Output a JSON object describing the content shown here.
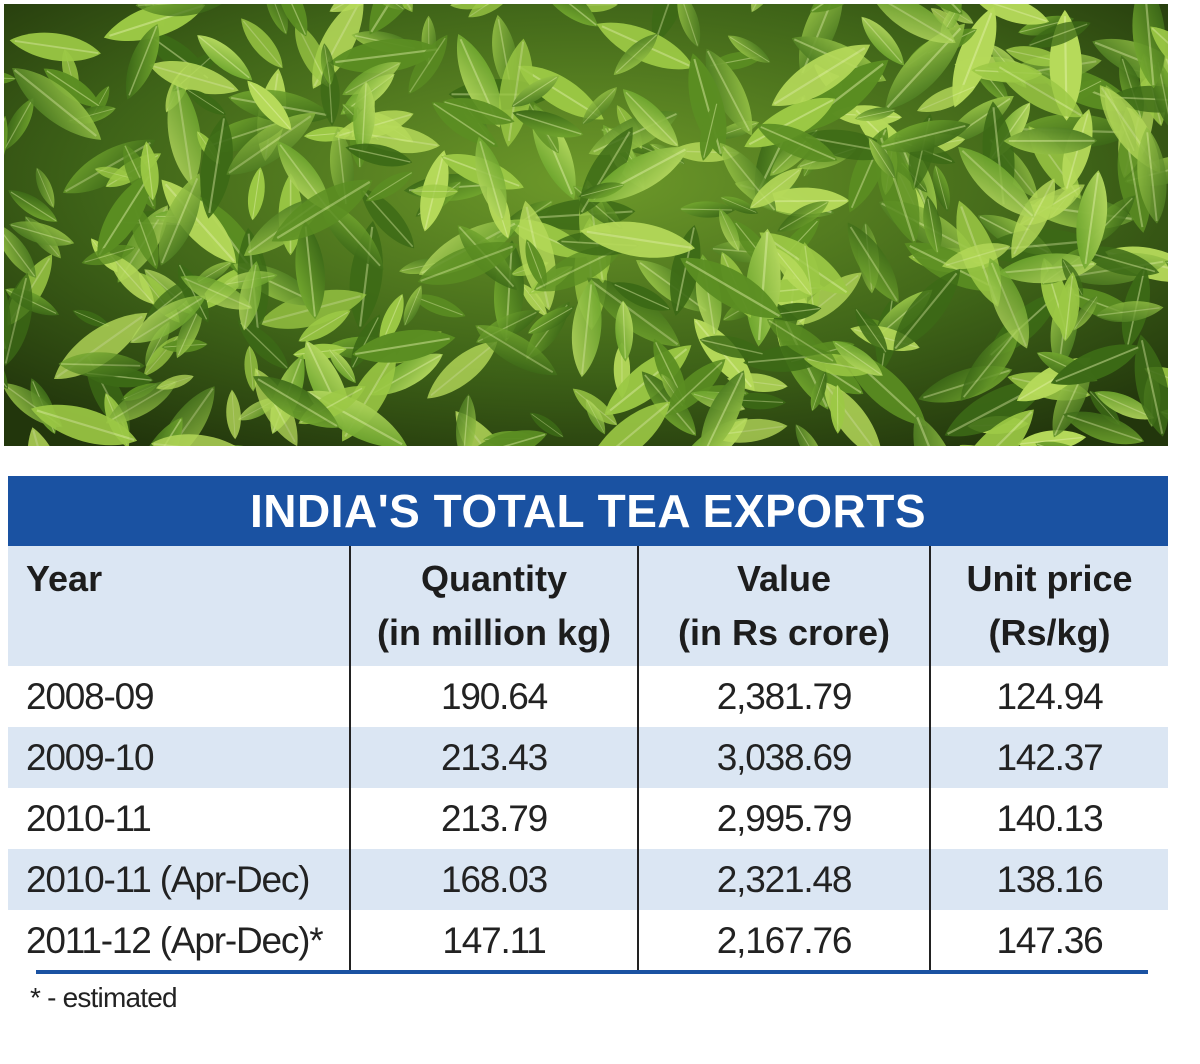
{
  "photo": {
    "icon": "tea-leaves-photo"
  },
  "table": {
    "title": "INDIA'S TOTAL TEA EXPORTS",
    "headers": {
      "year": "Year",
      "quantity_line1": "Quantity",
      "quantity_line2": "(in million kg)",
      "value_line1": "Value",
      "value_line2": "(in Rs crore)",
      "unit_line1": "Unit price",
      "unit_line2": "(Rs/kg)"
    },
    "rows": [
      {
        "year": "2008-09",
        "quantity": "190.64",
        "value": "2,381.79",
        "unit_price": "124.94"
      },
      {
        "year": "2009-10",
        "quantity": "213.43",
        "value": "3,038.69",
        "unit_price": "142.37"
      },
      {
        "year": "2010-11",
        "quantity": "213.79",
        "value": "2,995.79",
        "unit_price": "140.13"
      },
      {
        "year": "2010-11 (Apr-Dec)",
        "quantity": "168.03",
        "value": "2,321.48",
        "unit_price": "138.16"
      },
      {
        "year": "2011-12 (Apr-Dec)*",
        "quantity": "147.11",
        "value": "2,167.76",
        "unit_price": "147.36"
      }
    ],
    "footnote": "* - estimated"
  },
  "colors": {
    "title_bar": "#1a52a2",
    "row_shade": "#dbe6f3",
    "leaf_light": "#8cc63f",
    "leaf_dark": "#3d6b1a"
  }
}
